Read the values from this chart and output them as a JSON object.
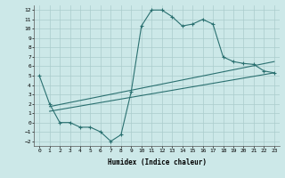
{
  "xlabel": "Humidex (Indice chaleur)",
  "xlim": [
    -0.5,
    23.5
  ],
  "ylim": [
    -2.5,
    12.5
  ],
  "yticks": [
    -2,
    -1,
    0,
    1,
    2,
    3,
    4,
    5,
    6,
    7,
    8,
    9,
    10,
    11,
    12
  ],
  "xticks": [
    0,
    1,
    2,
    3,
    4,
    5,
    6,
    7,
    8,
    9,
    10,
    11,
    12,
    13,
    14,
    15,
    16,
    17,
    18,
    19,
    20,
    21,
    22,
    23
  ],
  "bg_color": "#cce8e8",
  "grid_color": "#aacccc",
  "line_color": "#2a7070",
  "line1_x": [
    0,
    1,
    2,
    3,
    4,
    5,
    6,
    7,
    8,
    9,
    10,
    11,
    12,
    13,
    14,
    15,
    16,
    17,
    18,
    19,
    20,
    21,
    22,
    23
  ],
  "line1_y": [
    5,
    2,
    0,
    0,
    -0.5,
    -0.5,
    -1,
    -2,
    -1.3,
    3.3,
    10.3,
    12,
    12,
    11.3,
    10.3,
    10.5,
    11,
    10.5,
    7,
    6.5,
    6.3,
    6.2,
    5.5,
    5.3
  ],
  "line2_x": [
    1,
    23
  ],
  "line2_y": [
    1.2,
    5.3
  ],
  "line3_x": [
    1,
    23
  ],
  "line3_y": [
    1.7,
    6.5
  ],
  "marker": "+"
}
